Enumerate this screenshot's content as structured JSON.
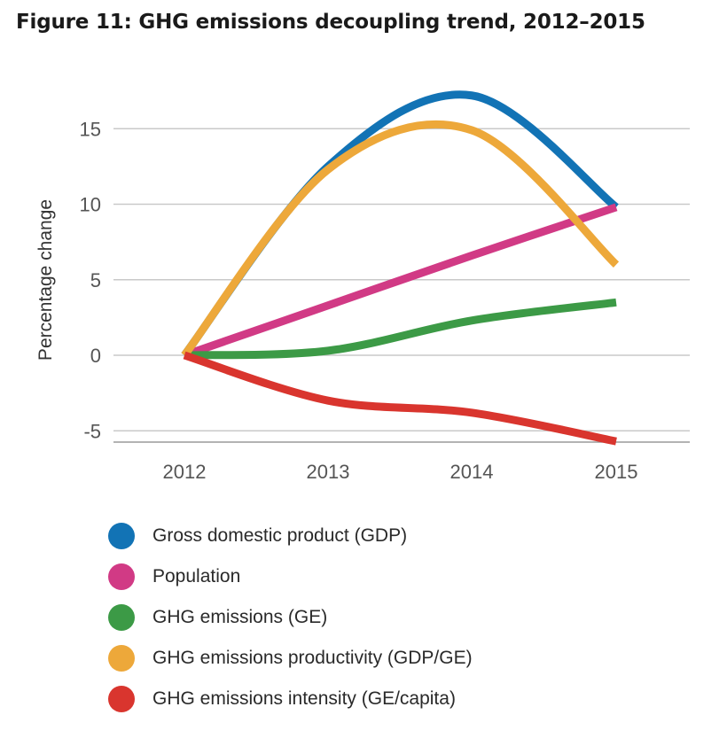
{
  "title": "Figure 11: GHG emissions decoupling trend, 2012–2015",
  "chart_data": {
    "type": "line",
    "title": "Figure 11: GHG emissions decoupling trend, 2012–2015",
    "xlabel": "",
    "ylabel": "Percentage change",
    "x": [
      "2012",
      "2013",
      "2014",
      "2015"
    ],
    "y_ticks": [
      "15",
      "10",
      "5",
      "0",
      "-5"
    ],
    "ylim": [
      -6,
      17.5
    ],
    "grid": "horizontal",
    "legend_position": "bottom",
    "series": [
      {
        "name": "Gross domestic product (GDP)",
        "color": "#1273b5",
        "values": [
          0,
          12.5,
          17.2,
          9.8
        ]
      },
      {
        "name": "Population",
        "color": "#d13a85",
        "values": [
          0,
          3.3,
          6.6,
          9.8
        ]
      },
      {
        "name": "GHG emissions (GE)",
        "color": "#3c9a46",
        "values": [
          0,
          0.3,
          2.3,
          3.5
        ]
      },
      {
        "name": "GHG emissions productivity (GDP/GE)",
        "color": "#eda83a",
        "values": [
          0,
          12.3,
          14.9,
          6.0
        ]
      },
      {
        "name": "GHG emissions intensity (GE/capita)",
        "color": "#d9352e",
        "values": [
          0,
          -3.0,
          -3.8,
          -5.7
        ]
      }
    ]
  }
}
